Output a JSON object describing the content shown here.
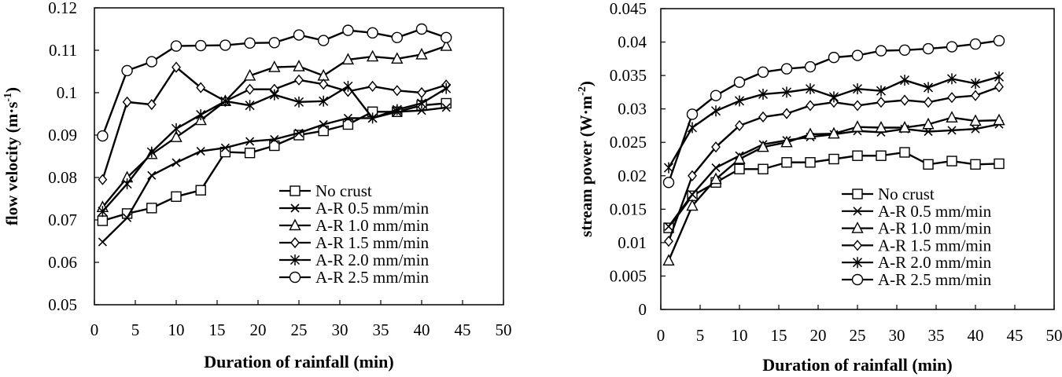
{
  "chart_data": [
    {
      "type": "line",
      "xlabel": "Duration of rainfall (min)",
      "ylabel": "flow velocity (m·s",
      "ylabel_sup": "-1",
      "ylabel_end": ")",
      "xlim": [
        0,
        50
      ],
      "ylim": [
        0.05,
        0.12
      ],
      "xticks": [
        0,
        5,
        10,
        15,
        20,
        25,
        30,
        35,
        40,
        45,
        50
      ],
      "xtick_labels": [
        "0",
        "5",
        "10",
        "15",
        "20",
        "25",
        "30",
        "35",
        "40",
        "45",
        "50"
      ],
      "yticks": [
        0.05,
        0.06,
        0.07,
        0.08,
        0.09,
        0.1,
        0.11,
        0.12
      ],
      "ytick_labels": [
        "0.05",
        "0.06",
        "0.07",
        "0.08",
        "0.09",
        "0.1",
        "0.11",
        "0.12"
      ],
      "grid": false,
      "legend_position": "bottom-right",
      "x": [
        1,
        4,
        7,
        10,
        13,
        16,
        19,
        22,
        25,
        28,
        31,
        34,
        37,
        40,
        43
      ],
      "series": [
        {
          "name": "No crust",
          "marker": "square",
          "values": [
            0.0698,
            0.0715,
            0.0728,
            0.0755,
            0.077,
            0.086,
            0.0858,
            0.0875,
            0.09,
            0.091,
            0.0925,
            0.0955,
            0.0955,
            0.097,
            0.0975
          ]
        },
        {
          "name": "A-R 0.5 mm/min",
          "marker": "x",
          "values": [
            0.0648,
            0.0705,
            0.0805,
            0.0835,
            0.0862,
            0.087,
            0.0885,
            0.089,
            0.0905,
            0.0925,
            0.094,
            0.094,
            0.0955,
            0.0958,
            0.0965
          ]
        },
        {
          "name": "A-R 1.0 mm/min",
          "marker": "triangle",
          "values": [
            0.073,
            0.08,
            0.0855,
            0.0895,
            0.0935,
            0.098,
            0.104,
            0.106,
            0.1062,
            0.104,
            0.1078,
            0.1085,
            0.108,
            0.109,
            0.111
          ]
        },
        {
          "name": "A-R 1.5 mm/min",
          "marker": "diamond",
          "values": [
            0.0795,
            0.0978,
            0.0972,
            0.106,
            0.1012,
            0.098,
            0.1008,
            0.1008,
            0.103,
            0.102,
            0.1003,
            0.1015,
            0.1005,
            0.1,
            0.1018
          ]
        },
        {
          "name": "A-R 2.0 mm/min",
          "marker": "star",
          "values": [
            0.072,
            0.0785,
            0.086,
            0.0915,
            0.0948,
            0.098,
            0.097,
            0.0995,
            0.0978,
            0.098,
            0.1015,
            0.094,
            0.096,
            0.0975,
            0.101
          ]
        },
        {
          "name": "A-R 2.5 mm/min",
          "marker": "circle",
          "values": [
            0.0898,
            0.1052,
            0.1073,
            0.111,
            0.1111,
            0.1112,
            0.1117,
            0.1118,
            0.1136,
            0.1123,
            0.1147,
            0.1141,
            0.113,
            0.115,
            0.113
          ]
        }
      ]
    },
    {
      "type": "line",
      "xlabel": "Duration of rainfall (min)",
      "ylabel": "stream power (W·m",
      "ylabel_sup": "-2",
      "ylabel_end": ")",
      "xlim": [
        0,
        50
      ],
      "ylim": [
        0,
        0.045
      ],
      "xticks": [
        0,
        5,
        10,
        15,
        20,
        25,
        30,
        35,
        40,
        45,
        50
      ],
      "xtick_labels": [
        "0",
        "5",
        "10",
        "15",
        "20",
        "25",
        "30",
        "35",
        "40",
        "45",
        "50"
      ],
      "yticks": [
        0,
        0.005,
        0.01,
        0.015,
        0.02,
        0.025,
        0.03,
        0.035,
        0.04,
        0.045
      ],
      "ytick_labels": [
        "0",
        "0.005",
        "0.01",
        "0.015",
        "0.02",
        "0.025",
        "0.03",
        "0.035",
        "0.04",
        "0.045"
      ],
      "grid": false,
      "legend_position": "bottom-right",
      "x": [
        1,
        4,
        7,
        10,
        13,
        16,
        19,
        22,
        25,
        28,
        31,
        34,
        37,
        40,
        43
      ],
      "series": [
        {
          "name": "No crust",
          "marker": "square",
          "values": [
            0.0122,
            0.017,
            0.019,
            0.021,
            0.021,
            0.022,
            0.022,
            0.0225,
            0.023,
            0.023,
            0.0235,
            0.0217,
            0.0222,
            0.0217,
            0.0218
          ]
        },
        {
          "name": "A-R 0.5 mm/min",
          "marker": "x",
          "values": [
            0.0124,
            0.0172,
            0.0212,
            0.023,
            0.0247,
            0.0253,
            0.0258,
            0.0262,
            0.0267,
            0.0265,
            0.027,
            0.0266,
            0.0268,
            0.027,
            0.0277
          ]
        },
        {
          "name": "A-R 1.0 mm/min",
          "marker": "triangle",
          "values": [
            0.0073,
            0.0155,
            0.0195,
            0.0225,
            0.0243,
            0.025,
            0.0262,
            0.0263,
            0.0273,
            0.0272,
            0.0272,
            0.0277,
            0.0287,
            0.0282,
            0.0283
          ]
        },
        {
          "name": "A-R 1.5 mm/min",
          "marker": "diamond",
          "values": [
            0.0102,
            0.02,
            0.0243,
            0.0275,
            0.0288,
            0.0293,
            0.0305,
            0.031,
            0.0305,
            0.031,
            0.0313,
            0.031,
            0.0317,
            0.032,
            0.0333
          ]
        },
        {
          "name": "A-R 2.0 mm/min",
          "marker": "star",
          "values": [
            0.0212,
            0.0272,
            0.0297,
            0.0312,
            0.0322,
            0.0325,
            0.033,
            0.0318,
            0.033,
            0.0327,
            0.0343,
            0.0332,
            0.0345,
            0.0338,
            0.0348
          ]
        },
        {
          "name": "A-R 2.5 mm/min",
          "marker": "circle",
          "values": [
            0.019,
            0.0292,
            0.032,
            0.034,
            0.0355,
            0.036,
            0.0363,
            0.0377,
            0.038,
            0.0387,
            0.0388,
            0.039,
            0.0393,
            0.0397,
            0.0402
          ]
        }
      ]
    }
  ]
}
